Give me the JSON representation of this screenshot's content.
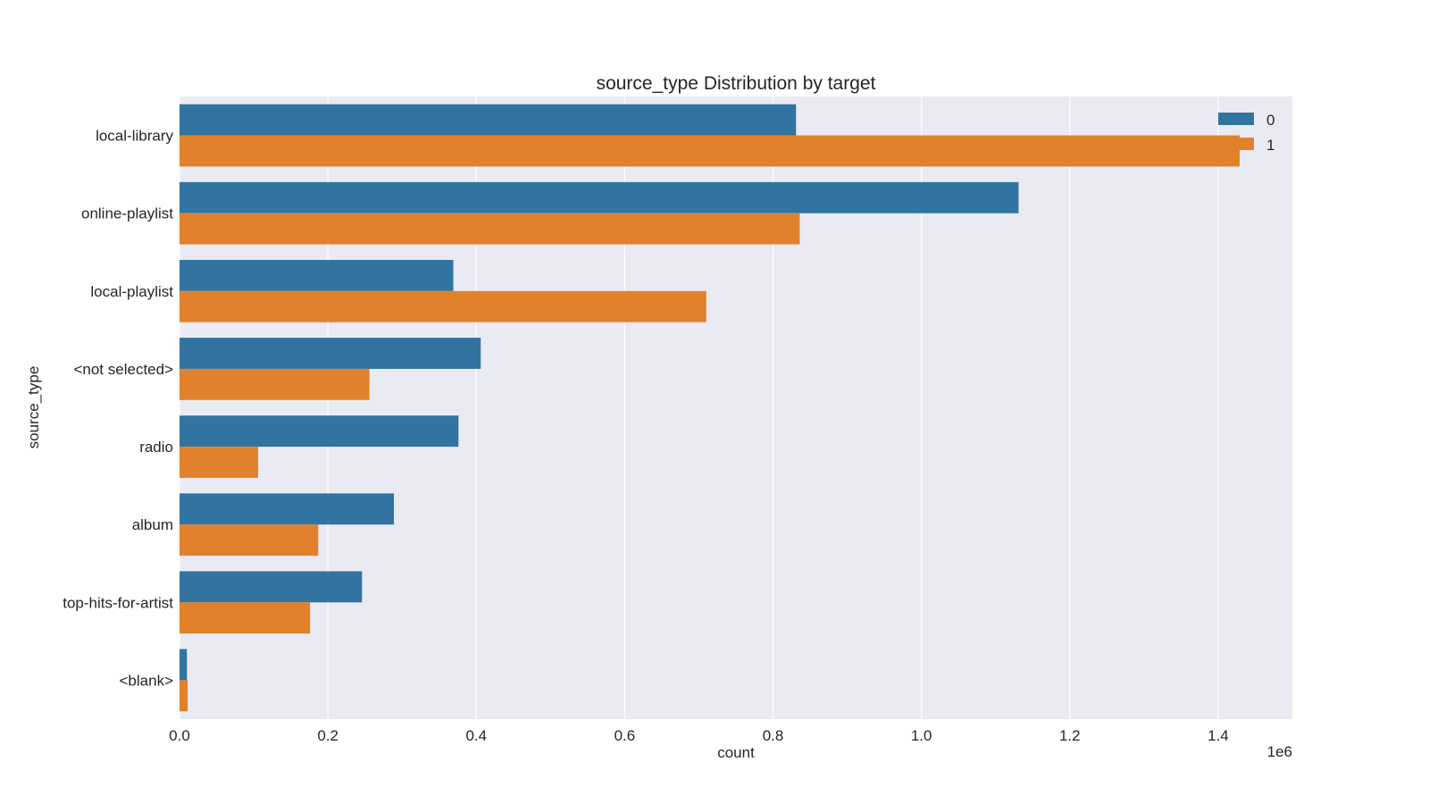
{
  "chart_data": {
    "type": "bar",
    "orientation": "horizontal",
    "title": "source_type Distribution by target",
    "xlabel": "count",
    "ylabel": "source_type",
    "x_offset_label": "1e6",
    "xlim": [
      0,
      1.5
    ],
    "x_ticks": [
      "0.0",
      "0.2",
      "0.4",
      "0.6",
      "0.8",
      "1.0",
      "1.2",
      "1.4"
    ],
    "x_tick_values": [
      0,
      0.2,
      0.4,
      0.6,
      0.8,
      1.0,
      1.2,
      1.4
    ],
    "categories": [
      "local-library",
      "online-playlist",
      "local-playlist",
      "<not selected>",
      "radio",
      "album",
      "top-hits-for-artist",
      "<blank>"
    ],
    "series": [
      {
        "name": "0",
        "color": "#3274a1",
        "values": [
          0.831,
          1.131,
          0.369,
          0.406,
          0.376,
          0.289,
          0.246,
          0.01
        ]
      },
      {
        "name": "1",
        "color": "#e1812c",
        "values": [
          1.429,
          0.836,
          0.71,
          0.256,
          0.106,
          0.187,
          0.176,
          0.011
        ]
      }
    ],
    "grid": true,
    "legend_position": "top-right"
  }
}
